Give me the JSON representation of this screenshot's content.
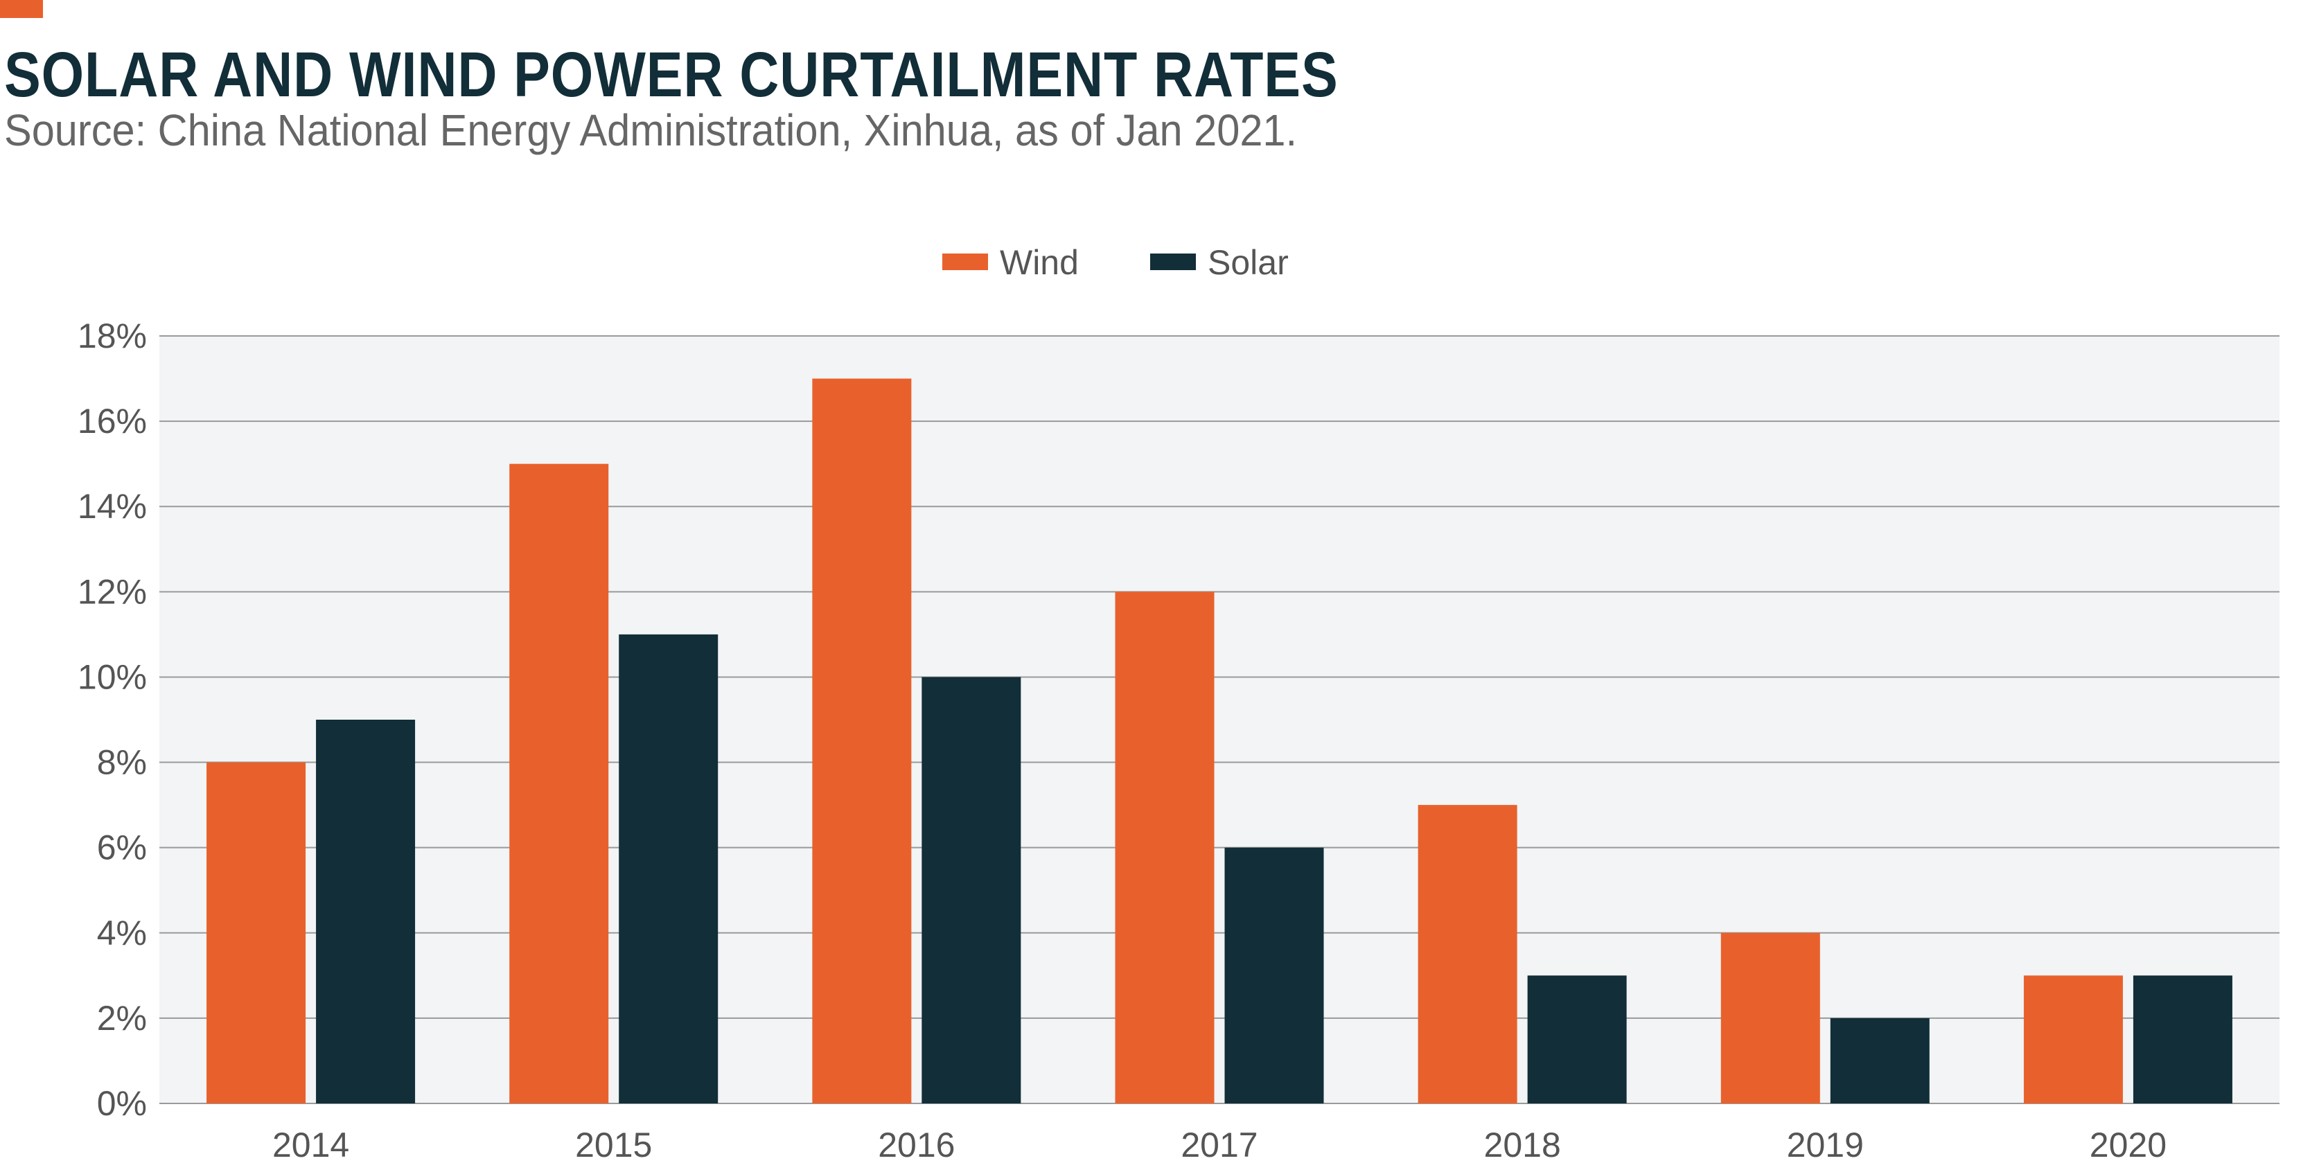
{
  "header": {
    "title": "SOLAR AND WIND POWER CURTAILMENT RATES",
    "subtitle": "Source: China National Energy Administration, Xinhua, as of Jan 2021."
  },
  "colors": {
    "accent": "#E8612C",
    "wind": "#E8612C",
    "solar": "#122E38",
    "title": "#122E38",
    "plot_background": "#F2F4F5",
    "grid": "#9A9A9A"
  },
  "chart_data": {
    "type": "bar",
    "title": "SOLAR AND WIND POWER CURTAILMENT RATES",
    "subtitle": "Source: China National Energy Administration, Xinhua, as of Jan 2021.",
    "categories": [
      "2014",
      "2015",
      "2016",
      "2017",
      "2018",
      "2019",
      "2020"
    ],
    "series": [
      {
        "name": "Wind",
        "values": [
          8,
          15,
          17,
          12,
          7,
          4,
          3
        ],
        "color": "#E8612C"
      },
      {
        "name": "Solar",
        "values": [
          9,
          11,
          10,
          6,
          3,
          2,
          3
        ],
        "color": "#122E38"
      }
    ],
    "ylim": [
      0,
      18
    ],
    "yticks": [
      0,
      2,
      4,
      6,
      8,
      10,
      12,
      14,
      16,
      18
    ],
    "ytick_labels": [
      "0%",
      "2%",
      "4%",
      "6%",
      "8%",
      "10%",
      "12%",
      "14%",
      "16%",
      "18%"
    ],
    "xlabel": "",
    "ylabel": "",
    "grid": true,
    "legend_position": "top-center"
  }
}
